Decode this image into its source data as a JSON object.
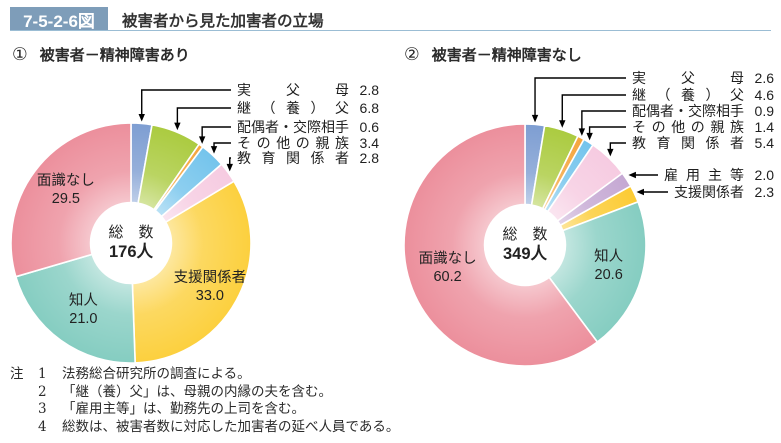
{
  "header": {
    "figure_label": "7-5-2-6図",
    "title": "被害者から見た加害者の立場"
  },
  "chart_data": [
    {
      "type": "pie",
      "style": "donut",
      "index_label": "①",
      "title": "被害者－精神障害あり",
      "unit": "%",
      "center": {
        "label": "総　数",
        "value": "176人"
      },
      "slices": [
        {
          "name": "実父母",
          "value": 2.8,
          "color": "#7e9ed2",
          "label_placement": "callout"
        },
        {
          "name": "継（養）父",
          "value": 6.8,
          "color": "#abcb40",
          "label_placement": "callout"
        },
        {
          "name": "配偶者・交際相手",
          "value": 0.6,
          "color": "#f5a53c",
          "label_placement": "callout"
        },
        {
          "name": "その他の親族",
          "value": 3.4,
          "color": "#74c4ec",
          "label_placement": "callout"
        },
        {
          "name": "教育関係者",
          "value": 2.8,
          "color": "#f6cbe1",
          "label_placement": "callout"
        },
        {
          "name": "支援関係者",
          "value": 33.0,
          "color": "#fcd03e",
          "label_placement": "inside"
        },
        {
          "name": "知人",
          "value": 21.0,
          "color": "#85cdc1",
          "label_placement": "inside"
        },
        {
          "name": "面識なし",
          "value": 29.5,
          "color": "#ec8f9c",
          "label_placement": "inside"
        }
      ]
    },
    {
      "type": "pie",
      "style": "donut",
      "index_label": "②",
      "title": "被害者－精神障害なし",
      "unit": "%",
      "center": {
        "label": "総　数",
        "value": "349人"
      },
      "slices": [
        {
          "name": "実父母",
          "value": 2.6,
          "color": "#7e9ed2",
          "label_placement": "callout"
        },
        {
          "name": "継（養）父",
          "value": 4.6,
          "color": "#abcb40",
          "label_placement": "callout"
        },
        {
          "name": "配偶者・交際相手",
          "value": 0.9,
          "color": "#f5a53c",
          "label_placement": "callout"
        },
        {
          "name": "その他の親族",
          "value": 1.4,
          "color": "#74c4ec",
          "label_placement": "callout"
        },
        {
          "name": "教育関係者",
          "value": 5.4,
          "color": "#f6cbe1",
          "label_placement": "callout"
        },
        {
          "name": "雇用主等",
          "value": 2.0,
          "color": "#c5a8d3",
          "label_placement": "callout-side"
        },
        {
          "name": "支援関係者",
          "value": 2.3,
          "color": "#fccb33",
          "label_placement": "callout-side"
        },
        {
          "name": "知人",
          "value": 20.6,
          "color": "#85cdc1",
          "label_placement": "inside"
        },
        {
          "name": "面識なし",
          "value": 60.2,
          "color": "#ec8f9c",
          "label_placement": "inside"
        }
      ]
    }
  ],
  "notes": {
    "prefix": "注",
    "items": [
      {
        "num": "1",
        "text": "法務総合研究所の調査による。"
      },
      {
        "num": "2",
        "text": "「継（養）父」は、母親の内縁の夫を含む。"
      },
      {
        "num": "3",
        "text": "「雇用主等」は、勤務先の上司を含む。"
      },
      {
        "num": "4",
        "text": "総数は、被害者数に対応した加害者の延べ人員である。"
      }
    ]
  }
}
